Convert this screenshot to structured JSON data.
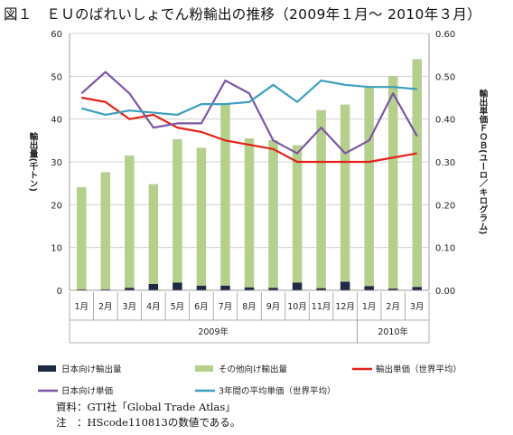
{
  "chart_data": {
    "type": "bar",
    "title": "図１　ＥＵのばれいしょでん粉輸出の推移（2009年１月～ 2010年３月）",
    "categories": [
      "1月",
      "2月",
      "3月",
      "4月",
      "5月",
      "6月",
      "7月",
      "8月",
      "9月",
      "10月",
      "11月",
      "12月",
      "1月",
      "2月",
      "3月"
    ],
    "year_groups": [
      {
        "label": "2009年",
        "start": 0,
        "end": 11
      },
      {
        "label": "2010年",
        "start": 12,
        "end": 14
      }
    ],
    "ylabel_left": "輸出量(千トン)",
    "ylabel_right": "輸出単価ＦＯＢ(ユーロ／キログラム)",
    "ylim_left": [
      0,
      60
    ],
    "yticks_left": [
      "0",
      "10",
      "20",
      "30",
      "40",
      "50",
      "60"
    ],
    "ylim_right": [
      0,
      0.6
    ],
    "yticks_right": [
      "0.00",
      "0.10",
      "0.20",
      "0.30",
      "0.40",
      "0.50",
      "0.60"
    ],
    "grid": true,
    "series": [
      {
        "name": "日本向け輸出量",
        "kind": "bar",
        "axis": "left",
        "color": "#1f2a44",
        "values": [
          0.2,
          0.2,
          0.6,
          1.5,
          1.8,
          1.1,
          1.1,
          0.7,
          0.6,
          1.8,
          0.5,
          2.0,
          1.0,
          0.4,
          0.8
        ]
      },
      {
        "name": "その他向け輸出量",
        "kind": "bar",
        "axis": "left",
        "color": "#b5cf8d",
        "values": [
          23.9,
          27.4,
          30.9,
          23.3,
          33.5,
          32.2,
          42.3,
          34.8,
          34.5,
          32.1,
          41.6,
          41.4,
          46.6,
          49.6,
          53.2
        ]
      },
      {
        "name": "輸出単価（世界平均）",
        "kind": "line",
        "axis": "right",
        "color": "#e2231a",
        "values": [
          0.45,
          0.44,
          0.4,
          0.41,
          0.38,
          0.37,
          0.35,
          0.34,
          0.33,
          0.3,
          0.3,
          0.3,
          0.3,
          0.31,
          0.32
        ]
      },
      {
        "name": "日本向け単価",
        "kind": "line",
        "axis": "right",
        "color": "#7b56a3",
        "values": [
          0.46,
          0.51,
          0.46,
          0.38,
          0.39,
          0.39,
          0.49,
          0.46,
          0.35,
          0.32,
          0.38,
          0.32,
          0.35,
          0.46,
          0.36
        ]
      },
      {
        "name": "3年間の平均単価（世界平均）",
        "kind": "line",
        "axis": "right",
        "color": "#3d9ebc",
        "values": [
          0.425,
          0.41,
          0.42,
          0.415,
          0.41,
          0.435,
          0.435,
          0.44,
          0.48,
          0.44,
          0.49,
          0.48,
          0.475,
          0.475,
          0.47
        ]
      }
    ]
  },
  "notes": {
    "source": "資料：GTI社「Global Trade Atlas」",
    "note": "注　：HScode110813の数値である。"
  }
}
